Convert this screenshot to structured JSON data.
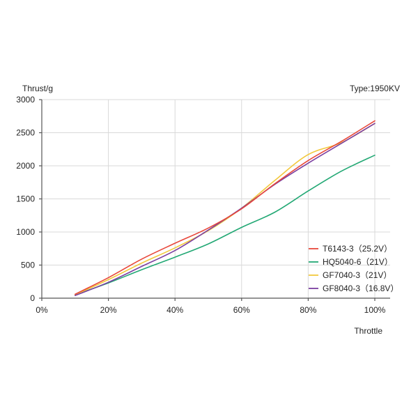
{
  "chart_data": {
    "type": "line",
    "ylabel": "Thrust/g",
    "xlabel": "Throttle",
    "annotation": "Type:1950KV",
    "xlim": [
      0,
      100
    ],
    "ylim": [
      0,
      3000
    ],
    "x_ticks": [
      0,
      20,
      40,
      60,
      80,
      100
    ],
    "x_tick_labels": [
      "0%",
      "20%",
      "40%",
      "60%",
      "80%",
      "100%"
    ],
    "y_ticks": [
      0,
      500,
      1000,
      1500,
      2000,
      2500,
      3000
    ],
    "y_tick_labels": [
      "0",
      "500",
      "1000",
      "1500",
      "2000",
      "2500",
      "3000"
    ],
    "grid": true,
    "legend_position": "bottom-right",
    "x": [
      10,
      20,
      30,
      40,
      50,
      60,
      70,
      80,
      90,
      100
    ],
    "series": [
      {
        "name": "T6143-3（25.2V）",
        "color": "#e8473a",
        "values": [
          60,
          310,
          590,
          830,
          1060,
          1350,
          1730,
          2080,
          2370,
          2680
        ]
      },
      {
        "name": "HQ5040-6（21V）",
        "color": "#22a874",
        "values": [
          50,
          230,
          430,
          620,
          820,
          1070,
          1300,
          1620,
          1920,
          2160
        ]
      },
      {
        "name": "GF7040-3（21V）",
        "color": "#f2c83c",
        "values": [
          50,
          280,
          530,
          760,
          1020,
          1360,
          1780,
          2170,
          2350,
          2640
        ]
      },
      {
        "name": "GF8040-3（16.8V）",
        "color": "#7b3fa0",
        "values": [
          40,
          240,
          480,
          720,
          1030,
          1360,
          1720,
          2040,
          2340,
          2640
        ]
      }
    ]
  }
}
